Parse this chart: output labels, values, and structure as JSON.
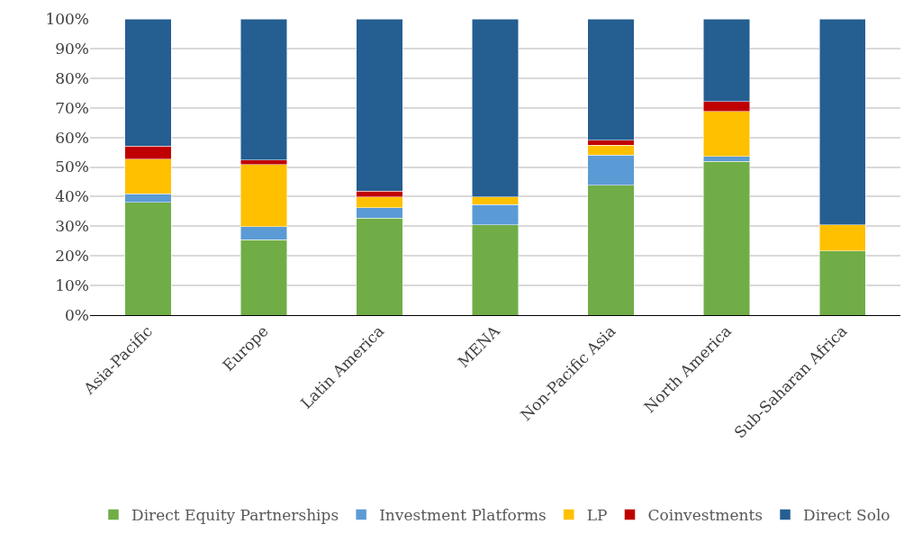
{
  "chart_data": {
    "type": "bar",
    "stacked": true,
    "grid": "y",
    "legend": "bottom",
    "categories": [
      "Asia-Pacific",
      "Europe",
      "Latin America",
      "MENA",
      "Non-Pacific Asia",
      "North America",
      "Sub-Saharan Africa"
    ],
    "series": [
      {
        "name": "Direct Equity Partnerships",
        "color": "#70ad47",
        "values": [
          38,
          25.4,
          32.8,
          30.5,
          43.9,
          51.9,
          21.7
        ]
      },
      {
        "name": "Investment Platforms",
        "color": "#5b9bd5",
        "values": [
          3,
          4.5,
          3.4,
          6.8,
          10.2,
          1.7,
          0
        ]
      },
      {
        "name": "LP",
        "color": "#ffc000",
        "values": [
          11.7,
          21,
          3.7,
          2.6,
          3.2,
          15.1,
          8.8
        ]
      },
      {
        "name": "Coinvestments",
        "color": "#c00000",
        "values": [
          4.3,
          1.4,
          2,
          0,
          1.7,
          3.4,
          0
        ]
      },
      {
        "name": "Direct Solo",
        "color": "#255e91",
        "values": [
          43,
          47.7,
          58.1,
          60.1,
          41,
          27.9,
          69.5
        ]
      }
    ],
    "ylim": [
      0,
      100
    ],
    "yticks": [
      {
        "value": 0,
        "label": "0%"
      },
      {
        "value": 10,
        "label": "10%"
      },
      {
        "value": 20,
        "label": "20%"
      },
      {
        "value": 30,
        "label": "30%"
      },
      {
        "value": 40,
        "label": "40%"
      },
      {
        "value": 50,
        "label": "50%"
      },
      {
        "value": 60,
        "label": "60%"
      },
      {
        "value": 70,
        "label": "70%"
      },
      {
        "value": 80,
        "label": "80%"
      },
      {
        "value": 90,
        "label": "90%"
      },
      {
        "value": 100,
        "label": "100%"
      }
    ]
  }
}
